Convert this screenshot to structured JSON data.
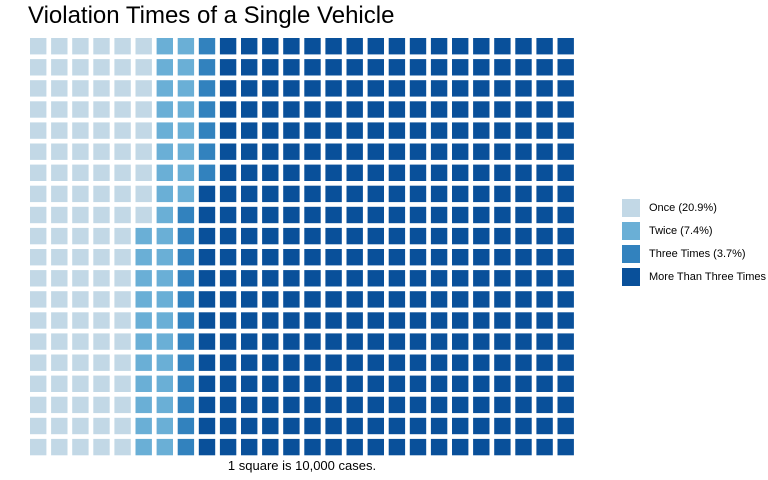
{
  "chart_data": {
    "type": "waffle",
    "title": "Violation Times of a Single Vehicle",
    "caption": "1 square is 10,000 cases.",
    "grid": {
      "columns": 26,
      "rows": 20
    },
    "column_order_from_left": [
      "Once",
      "Twice",
      "Three Times",
      "More Than Three Times"
    ],
    "categories": [
      {
        "name": "Once",
        "label": "Once (20.9%)",
        "squares": 109,
        "color": "#c2d8e6"
      },
      {
        "name": "Twice",
        "label": "Twice (7.4%)",
        "squares": 39,
        "color": "#6aafd6"
      },
      {
        "name": "Three Times",
        "label": "Three Times (3.7%)",
        "squares": 19,
        "color": "#3282be"
      },
      {
        "name": "More Than Three Times",
        "label": "More Than Three Times",
        "squares": 353,
        "color": "#09509a"
      }
    ],
    "legend_position": "right"
  }
}
